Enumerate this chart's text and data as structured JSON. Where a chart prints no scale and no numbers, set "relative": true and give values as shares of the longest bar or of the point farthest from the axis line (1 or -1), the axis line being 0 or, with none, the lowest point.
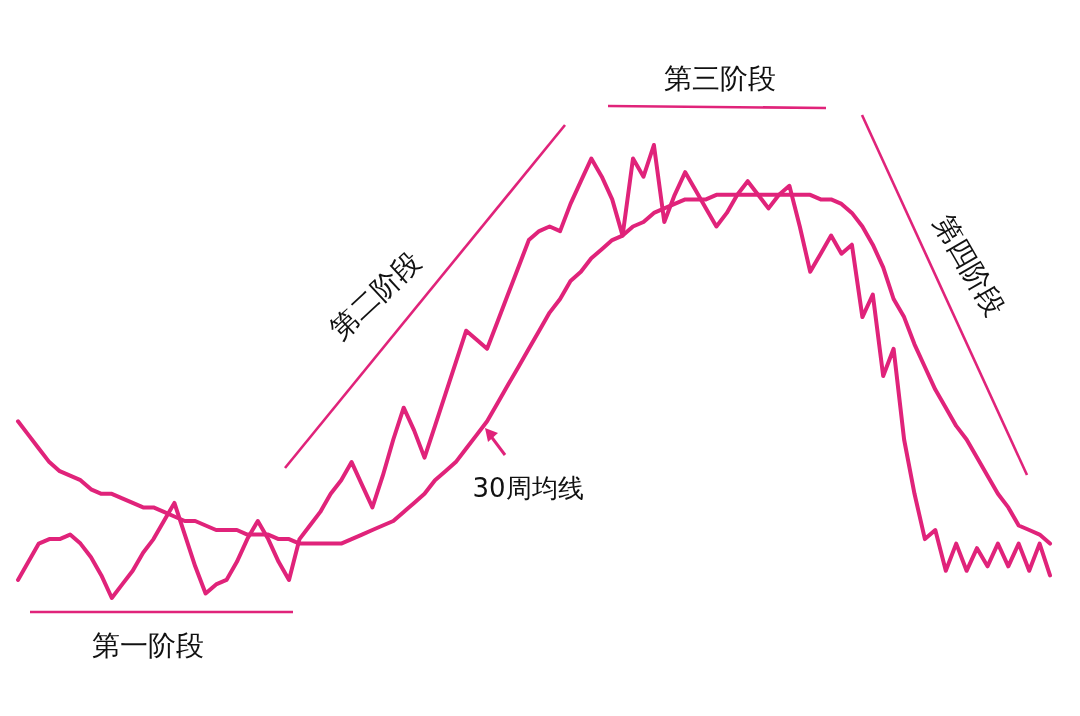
{
  "chart_data": {
    "type": "line",
    "relative": true,
    "line_style": "solid",
    "categories": [
      null,
      null,
      null,
      null,
      null,
      null,
      null,
      null,
      null,
      null,
      null,
      null,
      null,
      null,
      null,
      null,
      null,
      null,
      null,
      null,
      null,
      null,
      null,
      null,
      null,
      null,
      null,
      null,
      null,
      null,
      null,
      null,
      null,
      null,
      null,
      null,
      null,
      null,
      null,
      null,
      null,
      null,
      null,
      null,
      null,
      null,
      null,
      null,
      null,
      null,
      null,
      null,
      null,
      null,
      null,
      null,
      null,
      null,
      null,
      null,
      null,
      null,
      null,
      null,
      null,
      null,
      null,
      null,
      null,
      null,
      null,
      null,
      null,
      null,
      null,
      null,
      null,
      null,
      null,
      null,
      null,
      null,
      null,
      null,
      null,
      null,
      null,
      null,
      null,
      null,
      null,
      null,
      null,
      null,
      null,
      null,
      null,
      null,
      null,
      null
    ],
    "series": [
      {
        "color": "#e0237a",
        "values": [
          0.04,
          0.08,
          0.12,
          0.13,
          0.13,
          0.14,
          0.12,
          0.09,
          0.05,
          0,
          0.03,
          0.06,
          0.1,
          0.13,
          0.17,
          0.21,
          0.14,
          0.07,
          0.01,
          0.03,
          0.04,
          0.08,
          0.13,
          0.17,
          0.13,
          0.08,
          0.04,
          0.13,
          0.16,
          0.19,
          0.23,
          0.26,
          0.3,
          0.25,
          0.2,
          0.27,
          0.35,
          0.42,
          0.37,
          0.31,
          0.38,
          0.45,
          0.52,
          0.59,
          0.57,
          0.55,
          0.61,
          0.67,
          0.73,
          0.79,
          0.81,
          0.82,
          0.81,
          0.87,
          0.92,
          0.97,
          0.93,
          0.88,
          0.8,
          0.97,
          0.93,
          1,
          0.83,
          0.89,
          0.94,
          0.9,
          0.86,
          0.82,
          0.85,
          0.89,
          0.92,
          0.89,
          0.86,
          0.89,
          0.91,
          0.82,
          0.72,
          0.76,
          0.8,
          0.76,
          0.78,
          0.62,
          0.67,
          0.49,
          0.55,
          0.35,
          0.23,
          0.13,
          0.15,
          0.06,
          0.12,
          0.06,
          0.11,
          0.07,
          0.12,
          0.07,
          0.12,
          0.06,
          0.12,
          0.05
        ]
      },
      {
        "color": "#e0237a",
        "values": [
          0.39,
          0.36,
          0.33,
          0.3,
          0.28,
          0.27,
          0.26,
          0.24,
          0.23,
          0.23,
          0.22,
          0.21,
          0.2,
          0.2,
          0.19,
          0.18,
          0.17,
          0.17,
          0.16,
          0.15,
          0.15,
          0.15,
          0.14,
          0.14,
          0.14,
          0.13,
          0.13,
          0.12,
          0.12,
          0.12,
          0.12,
          0.12,
          0.13,
          0.14,
          0.15,
          0.16,
          0.17,
          0.19,
          0.21,
          0.23,
          0.26,
          0.28,
          0.3,
          0.33,
          0.36,
          0.39,
          0.43,
          0.47,
          0.51,
          0.55,
          0.59,
          0.63,
          0.66,
          0.7,
          0.72,
          0.75,
          0.77,
          0.79,
          0.8,
          0.82,
          0.83,
          0.85,
          0.86,
          0.87,
          0.88,
          0.88,
          0.88,
          0.89,
          0.89,
          0.89,
          0.89,
          0.89,
          0.89,
          0.89,
          0.89,
          0.89,
          0.89,
          0.88,
          0.88,
          0.87,
          0.85,
          0.82,
          0.78,
          0.73,
          0.66,
          0.62,
          0.56,
          0.51,
          0.46,
          0.42,
          0.38,
          0.35,
          0.31,
          0.27,
          0.23,
          0.2,
          0.16,
          0.15,
          0.14,
          0.12
        ]
      }
    ],
    "annotations": [
      "第一阶段",
      "第二阶段",
      "第三阶段",
      "第四阶段",
      "30周均线"
    ]
  }
}
